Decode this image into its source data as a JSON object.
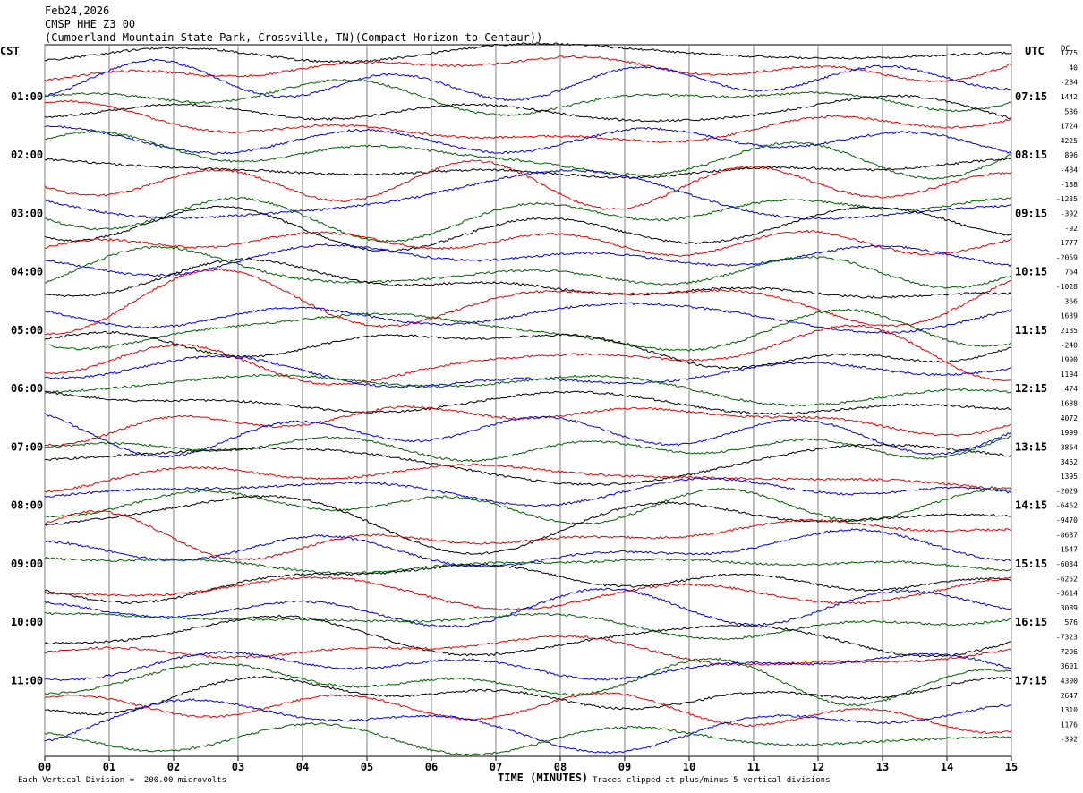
{
  "header": {
    "date": "Feb24,2026",
    "station": "CMSP HHE Z3 00",
    "location": "(Cumberland Mountain State Park, Crossville, TN)(Compact Horizon to Centaur))"
  },
  "labels": {
    "left_tz": "CST",
    "right_tz": "UTC",
    "dc": "DC"
  },
  "footer": {
    "scale": "Each Vertical Division =  200.00 microvolts",
    "xlabel": "TIME (MINUTES)",
    "clip": "Traces clipped at plus/minus 5 vertical divisions"
  },
  "chart_data": {
    "type": "line",
    "title": "CMSP HHE Z3 00",
    "xlabel": "TIME (MINUTES)",
    "x_ticks": [
      "00",
      "01",
      "02",
      "03",
      "04",
      "05",
      "06",
      "07",
      "08",
      "09",
      "10",
      "11",
      "12",
      "13",
      "14",
      "15"
    ],
    "xlim": [
      0,
      15
    ],
    "grid": "vertical lines at each minute",
    "trace_colors": [
      "#000000",
      "#e00000",
      "#0000e0",
      "#006000"
    ],
    "cst_hours": [
      "01:00",
      "02:00",
      "03:00",
      "04:00",
      "05:00",
      "06:00",
      "07:00",
      "08:00",
      "09:00",
      "10:00",
      "11:00"
    ],
    "utc_hours": [
      "07:15",
      "08:15",
      "09:15",
      "10:15",
      "11:15",
      "12:15",
      "13:15",
      "14:15",
      "15:15",
      "16:15",
      "17:15"
    ],
    "dc_offsets": [
      "1775",
      "40",
      "-284",
      "1442",
      "536",
      "1724",
      "4225",
      "896",
      "-484",
      "-188",
      "-1235",
      "-392",
      "-92",
      "-1777",
      "-2059",
      "764",
      "-1028",
      "366",
      "1639",
      "2185",
      "-240",
      "1990",
      "1194",
      "474",
      "1688",
      "4072",
      "1999",
      "3864",
      "3462",
      "1395",
      "-2029",
      "-6462",
      "-9470",
      "-8687",
      "-1547",
      "-6034",
      "-6252",
      "-3614",
      "3089",
      "576",
      "-7323",
      "7296",
      "3601",
      "4300",
      "2647",
      "1310",
      "1176",
      "-392"
    ],
    "trace_count": 48
  }
}
